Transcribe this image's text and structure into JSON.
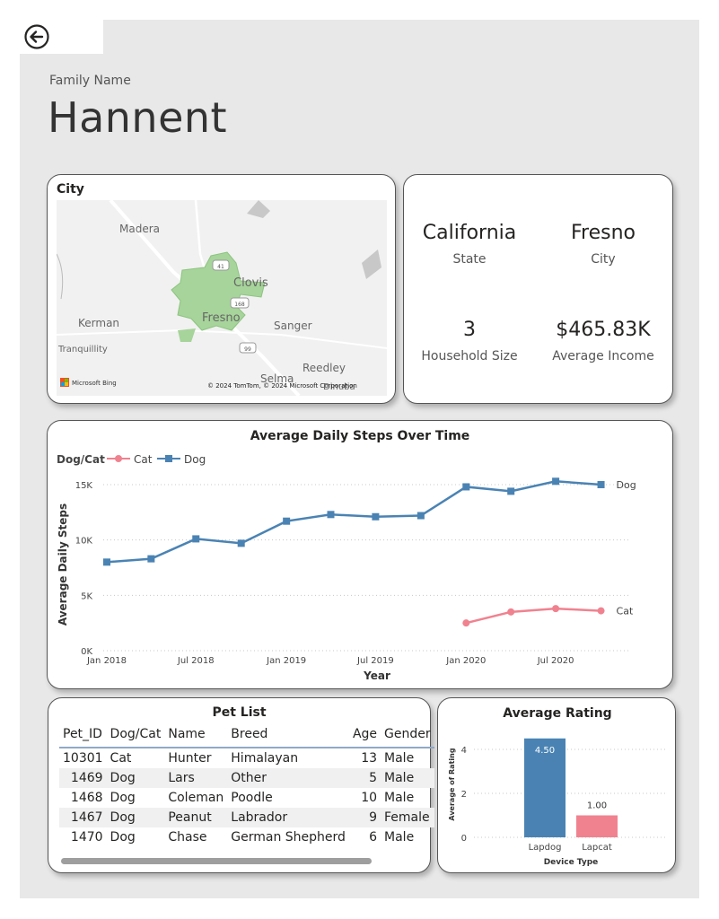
{
  "header": {
    "family_label": "Family Name",
    "family_name": "Hannent"
  },
  "map_card": {
    "title": "City",
    "places": {
      "madera": "Madera",
      "clovis": "Clovis",
      "fresno": "Fresno",
      "kerman": "Kerman",
      "sanger": "Sanger",
      "tranquillity": "Tranquillity",
      "reedley": "Reedley",
      "selma": "Selma",
      "dinuba": "Dinuba"
    },
    "road_41": "41",
    "road_168": "168",
    "road_99": "99",
    "bing": "Microsoft Bing",
    "copyright": "© 2024 TomTom, © 2024 Microsoft Corporation"
  },
  "info_card": {
    "state_value": "California",
    "state_label": "State",
    "city_value": "Fresno",
    "city_label": "City",
    "household_value": "3",
    "household_label": "Household Size",
    "income_value": "$465.83K",
    "income_label": "Average Income"
  },
  "steps_card": {
    "chart_data": {
      "type": "line",
      "title": "Average Daily Steps Over Time",
      "xlabel": "Year",
      "ylabel": "Average Daily Steps",
      "legend_title": "Dog/Cat",
      "legend_position": "top-left",
      "x_ticks": [
        "Jan 2018",
        "Jul 2018",
        "Jan 2019",
        "Jul 2019",
        "Jan 2020",
        "Jul 2020"
      ],
      "y_ticks": [
        "0K",
        "5K",
        "10K",
        "15K"
      ],
      "ylim": [
        0,
        15000
      ],
      "grid": true,
      "series": [
        {
          "name": "Cat",
          "color": "#f0828f",
          "marker": "circle",
          "x": [
            "2020-01",
            "2020-04",
            "2020-07",
            "2020-10"
          ],
          "values": [
            2500,
            3500,
            3800,
            3600
          ]
        },
        {
          "name": "Dog",
          "color": "#4a83b3",
          "marker": "square",
          "x": [
            "2018-01",
            "2018-04",
            "2018-07",
            "2018-10",
            "2019-01",
            "2019-04",
            "2019-07",
            "2019-10",
            "2020-01",
            "2020-04",
            "2020-07",
            "2020-10"
          ],
          "values": [
            8000,
            8300,
            10100,
            9700,
            11700,
            12300,
            12100,
            12200,
            14800,
            14400,
            15300,
            15000
          ]
        }
      ]
    }
  },
  "pet_list": {
    "title": "Pet List",
    "columns": [
      "Pet_ID",
      "Dog/Cat",
      "Name",
      "Breed",
      "Age",
      "Gender"
    ],
    "rows": [
      [
        "10301",
        "Cat",
        "Hunter",
        "Himalayan",
        "13",
        "Male"
      ],
      [
        "1469",
        "Dog",
        "Lars",
        "Other",
        "5",
        "Male"
      ],
      [
        "1468",
        "Dog",
        "Coleman",
        "Poodle",
        "10",
        "Male"
      ],
      [
        "1467",
        "Dog",
        "Peanut",
        "Labrador",
        "9",
        "Female"
      ],
      [
        "1470",
        "Dog",
        "Chase",
        "German Shepherd",
        "6",
        "Male"
      ]
    ]
  },
  "rating_card": {
    "chart_data": {
      "type": "bar",
      "title": "Average Rating",
      "xlabel": "Device Type",
      "ylabel": "Average of Rating",
      "categories": [
        "Lapdog",
        "Lapcat"
      ],
      "values": [
        4.5,
        1.0
      ],
      "data_labels": [
        "4.50",
        "1.00"
      ],
      "colors": [
        "#4a83b3",
        "#f0828f"
      ],
      "y_ticks": [
        "0",
        "2",
        "4"
      ],
      "ylim": [
        0,
        4.9
      ],
      "grid": true
    }
  },
  "icons": {
    "back": "back-arrow-icon"
  }
}
